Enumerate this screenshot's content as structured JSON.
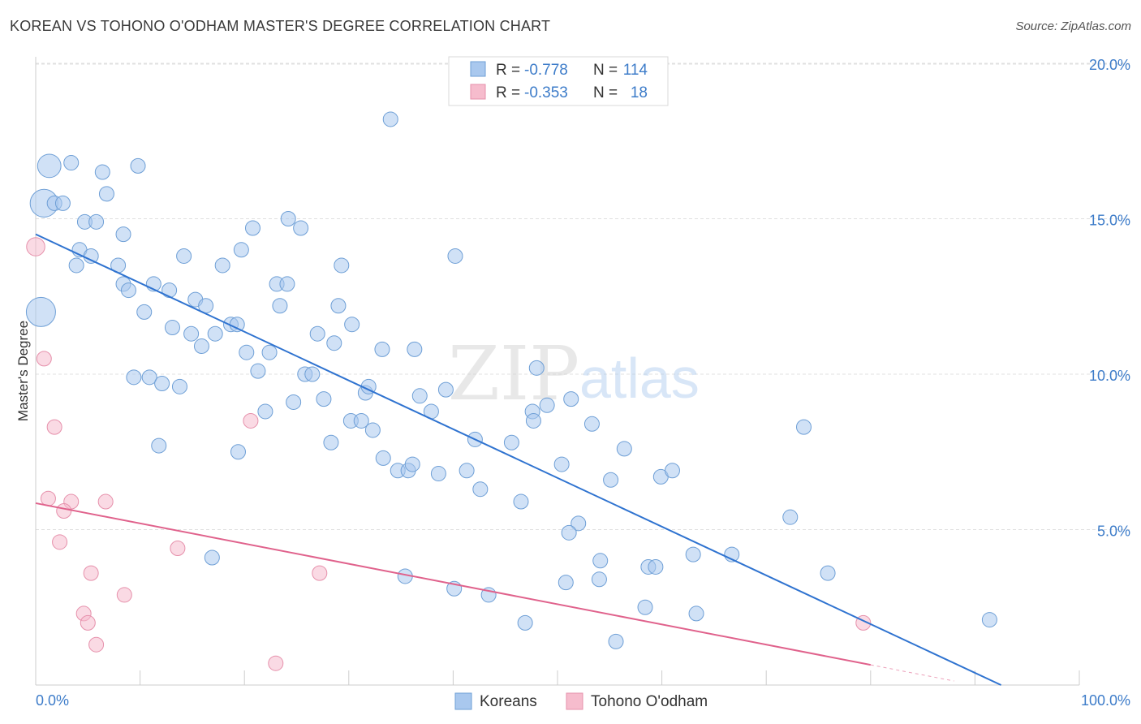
{
  "title": "KOREAN VS TOHONO O'ODHAM MASTER'S DEGREE CORRELATION CHART",
  "source": "Source: ZipAtlas.com",
  "watermark": {
    "zip": "ZIP",
    "atlas": "atlas"
  },
  "colors": {
    "korean_fill": "#a9c8ee",
    "korean_stroke": "#6e9fd6",
    "korean_line": "#2f73d0",
    "tohono_fill": "#f6bccd",
    "tohono_stroke": "#e690ab",
    "tohono_line": "#e0628c",
    "grid": "#e0e0e0",
    "axis_text": "#3d7cc9"
  },
  "legend": {
    "rows": [
      {
        "r_label": "R =",
        "r_value": "-0.778",
        "n_label": "N =",
        "n_value": "114"
      },
      {
        "r_label": "R =",
        "r_value": "-0.353",
        "n_label": "N =",
        "n_value": "18"
      }
    ]
  },
  "bottom_legend": [
    "Koreans",
    "Tohono O'odham"
  ],
  "chart_data": {
    "type": "scatter",
    "title": "KOREAN VS TOHONO O'ODHAM MASTER'S DEGREE CORRELATION CHART",
    "xlabel": "",
    "ylabel": "Master's Degree",
    "xlim": [
      0,
      100
    ],
    "ylim": [
      0,
      20.5
    ],
    "x_tick_labels": [
      "0.0%",
      "100.0%"
    ],
    "y_ticks": [
      5,
      10,
      15,
      20
    ],
    "y_tick_labels": [
      "5.0%",
      "10.0%",
      "15.0%",
      "20.0%"
    ],
    "grid": true,
    "legend_position": "top-center",
    "series": [
      {
        "name": "Koreans",
        "r": -0.778,
        "n": 114,
        "trend": {
          "x0": 0,
          "y0": 14.5,
          "x1": 92.5,
          "y1": 0
        },
        "points": [
          [
            1.3,
            16.7,
            3.2
          ],
          [
            3.4,
            16.8,
            2
          ],
          [
            6.4,
            16.5,
            2
          ],
          [
            9.8,
            16.7,
            2
          ],
          [
            34.0,
            18.2,
            2
          ],
          [
            0.8,
            15.5,
            3.8
          ],
          [
            1.8,
            15.5,
            2
          ],
          [
            2.6,
            15.5,
            2
          ],
          [
            6.8,
            15.8,
            2
          ],
          [
            4.7,
            14.9,
            2
          ],
          [
            5.8,
            14.9,
            2
          ],
          [
            8.4,
            14.5,
            2
          ],
          [
            20.8,
            14.7,
            2
          ],
          [
            24.2,
            15.0,
            2
          ],
          [
            25.4,
            14.7,
            2
          ],
          [
            4.2,
            14.0,
            2
          ],
          [
            5.3,
            13.8,
            2
          ],
          [
            3.9,
            13.5,
            2
          ],
          [
            7.9,
            13.5,
            2
          ],
          [
            14.2,
            13.8,
            2
          ],
          [
            19.7,
            14.0,
            2
          ],
          [
            17.9,
            13.5,
            2
          ],
          [
            29.3,
            13.5,
            2
          ],
          [
            40.2,
            13.8,
            2
          ],
          [
            8.4,
            12.9,
            2
          ],
          [
            8.9,
            12.7,
            2
          ],
          [
            11.3,
            12.9,
            2
          ],
          [
            12.8,
            12.7,
            2
          ],
          [
            15.3,
            12.4,
            2
          ],
          [
            16.3,
            12.2,
            2
          ],
          [
            23.1,
            12.9,
            2
          ],
          [
            24.1,
            12.9,
            2
          ],
          [
            23.4,
            12.2,
            2
          ],
          [
            29.0,
            12.2,
            2
          ],
          [
            0.5,
            12.0,
            4.0
          ],
          [
            10.4,
            12.0,
            2
          ],
          [
            13.1,
            11.5,
            2
          ],
          [
            14.9,
            11.3,
            2
          ],
          [
            17.2,
            11.3,
            2
          ],
          [
            18.7,
            11.6,
            2
          ],
          [
            19.3,
            11.6,
            2
          ],
          [
            27.0,
            11.3,
            2
          ],
          [
            30.3,
            11.6,
            2
          ],
          [
            15.9,
            10.9,
            2
          ],
          [
            28.6,
            11.0,
            2
          ],
          [
            20.2,
            10.7,
            2
          ],
          [
            22.4,
            10.7,
            2
          ],
          [
            33.2,
            10.8,
            2
          ],
          [
            36.3,
            10.8,
            2
          ],
          [
            21.3,
            10.1,
            2
          ],
          [
            25.8,
            10.0,
            2
          ],
          [
            26.5,
            10.0,
            2
          ],
          [
            9.4,
            9.9,
            2
          ],
          [
            10.9,
            9.9,
            2
          ],
          [
            12.1,
            9.7,
            2
          ],
          [
            13.8,
            9.6,
            2
          ],
          [
            31.6,
            9.4,
            2
          ],
          [
            31.9,
            9.6,
            2
          ],
          [
            39.3,
            9.5,
            2
          ],
          [
            48.0,
            10.2,
            2
          ],
          [
            24.7,
            9.1,
            2
          ],
          [
            27.6,
            9.2,
            2
          ],
          [
            36.8,
            9.3,
            2
          ],
          [
            37.9,
            8.8,
            2
          ],
          [
            22.0,
            8.8,
            2
          ],
          [
            47.6,
            8.8,
            2
          ],
          [
            49.0,
            9.0,
            2
          ],
          [
            51.3,
            9.2,
            2
          ],
          [
            30.2,
            8.5,
            2
          ],
          [
            31.2,
            8.5,
            2
          ],
          [
            32.3,
            8.2,
            2
          ],
          [
            47.7,
            8.5,
            2
          ],
          [
            53.3,
            8.4,
            2
          ],
          [
            73.6,
            8.3,
            2
          ],
          [
            11.8,
            7.7,
            2
          ],
          [
            19.4,
            7.5,
            2
          ],
          [
            28.3,
            7.8,
            2
          ],
          [
            42.1,
            7.9,
            2
          ],
          [
            45.6,
            7.8,
            2
          ],
          [
            56.4,
            7.6,
            2
          ],
          [
            33.3,
            7.3,
            2
          ],
          [
            34.7,
            6.9,
            2
          ],
          [
            35.7,
            6.9,
            2
          ],
          [
            36.1,
            7.1,
            2
          ],
          [
            38.6,
            6.8,
            2
          ],
          [
            41.3,
            6.9,
            2
          ],
          [
            50.4,
            7.1,
            2
          ],
          [
            59.9,
            6.7,
            2
          ],
          [
            61.0,
            6.9,
            2
          ],
          [
            42.6,
            6.3,
            2
          ],
          [
            55.1,
            6.6,
            2
          ],
          [
            46.5,
            5.9,
            2
          ],
          [
            72.3,
            5.4,
            2
          ],
          [
            52.0,
            5.2,
            2
          ],
          [
            51.1,
            4.9,
            2
          ],
          [
            63.0,
            4.2,
            2
          ],
          [
            66.7,
            4.2,
            2
          ],
          [
            16.9,
            4.1,
            2
          ],
          [
            54.1,
            4.0,
            2
          ],
          [
            58.7,
            3.8,
            2
          ],
          [
            59.4,
            3.8,
            2
          ],
          [
            35.4,
            3.5,
            2
          ],
          [
            50.8,
            3.3,
            2
          ],
          [
            54.0,
            3.4,
            2
          ],
          [
            75.9,
            3.6,
            2
          ],
          [
            40.1,
            3.1,
            2
          ],
          [
            43.4,
            2.9,
            2
          ],
          [
            58.4,
            2.5,
            2
          ],
          [
            63.3,
            2.3,
            2
          ],
          [
            46.9,
            2.0,
            2
          ],
          [
            91.4,
            2.1,
            2
          ],
          [
            55.6,
            1.4,
            2
          ],
          [
            45.3,
            4.5,
            0
          ],
          [
            48.7,
            4.3,
            0
          ]
        ]
      },
      {
        "name": "Tohono O'odham",
        "r": -0.353,
        "n": 18,
        "trend": {
          "x0": 0,
          "y0": 5.85,
          "x1": 80.0,
          "y1": 0.65,
          "dash_to_x": 88.0
        },
        "points": [
          [
            0.0,
            14.1,
            2.5
          ],
          [
            0.8,
            10.5,
            2
          ],
          [
            1.8,
            8.3,
            2
          ],
          [
            20.6,
            8.5,
            2
          ],
          [
            1.2,
            6.0,
            2
          ],
          [
            3.4,
            5.9,
            2
          ],
          [
            6.7,
            5.9,
            2
          ],
          [
            2.7,
            5.6,
            2
          ],
          [
            2.3,
            4.6,
            2
          ],
          [
            13.6,
            4.4,
            2
          ],
          [
            5.3,
            3.6,
            2
          ],
          [
            27.2,
            3.6,
            2
          ],
          [
            8.5,
            2.9,
            2
          ],
          [
            4.6,
            2.3,
            2
          ],
          [
            5.0,
            2.0,
            2
          ],
          [
            5.8,
            1.3,
            2
          ],
          [
            23.0,
            0.7,
            2
          ],
          [
            79.3,
            2.0,
            2
          ]
        ]
      }
    ]
  }
}
